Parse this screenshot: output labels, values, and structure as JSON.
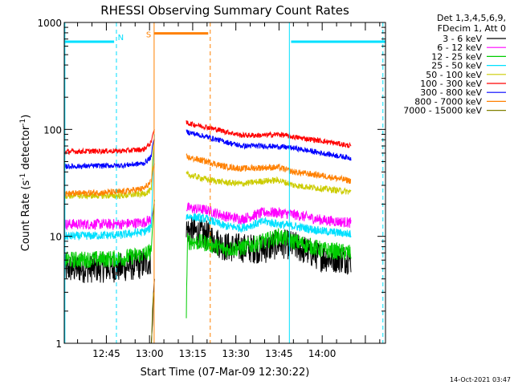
{
  "chart_data": {
    "type": "line",
    "title": "RHESSI Observing Summary Count Rates",
    "xlabel": "Start Time (07-Mar-09 12:30:22)",
    "ylabel_main": "Count Rate (s",
    "ylabel_sup1": "-1",
    "ylabel_mid": " detector",
    "ylabel_sup2": "-1",
    "ylabel_end": ")",
    "ylabel": "Count Rate (s^-1 detector^-1)",
    "yscale": "log",
    "ylim": [
      1,
      1000
    ],
    "xlim_min": [
      30.37,
      142.0
    ],
    "xticks": [
      {
        "v": 45,
        "label": "12:45"
      },
      {
        "v": 60,
        "label": "13:00"
      },
      {
        "v": 75,
        "label": "13:15"
      },
      {
        "v": 90,
        "label": "13:30"
      },
      {
        "v": 105,
        "label": "13:45"
      },
      {
        "v": 120,
        "label": "14:00"
      }
    ],
    "yticks": [
      {
        "v": 1,
        "label": "1"
      },
      {
        "v": 10,
        "label": "10"
      },
      {
        "v": 100,
        "label": "100"
      },
      {
        "v": 1000,
        "label": "1000"
      }
    ],
    "legend_header": [
      "Det 1,3,4,5,6,9,",
      "FDecim 1, Att 0"
    ],
    "legend_placement": "right",
    "footer_date": "14-Oct-2021 03:47",
    "gap_min": [
      61.8,
      72.5
    ],
    "flags": {
      "night_label": "N",
      "saa_label": "S",
      "night_color": "#00e0ff",
      "saa_color": "#ff8000",
      "night_level": 660,
      "saa_level": 790,
      "night_bars": [
        [
          30.37,
          47.7
        ],
        [
          109.2,
          142.0
        ]
      ],
      "night_edges": [
        30.6,
        48.5,
        108.6,
        141.1
      ],
      "saa_bar": [
        61.7,
        80.4
      ],
      "saa_edges": [
        61.6,
        81.1
      ],
      "night_label_at": 50.0,
      "saa_label_at": 59.7
    },
    "series": [
      {
        "name": "3 - 6 keV",
        "color": "#000000",
        "noise": 0.14,
        "pre": [
          [
            30.4,
            5.0
          ],
          [
            50,
            5.1
          ],
          [
            58,
            5.5
          ],
          [
            60.5,
            6.0
          ]
        ],
        "spike": [
          [
            60.6,
            1.0
          ],
          [
            61.0,
            1.5
          ],
          [
            61.4,
            3.0
          ],
          [
            61.7,
            4.0
          ]
        ],
        "post": [
          [
            72.8,
            11.5
          ],
          [
            80,
            10.2
          ],
          [
            86,
            8.0
          ],
          [
            92,
            7.8
          ],
          [
            100,
            7.6
          ],
          [
            105,
            8.6
          ],
          [
            110,
            8.2
          ],
          [
            120,
            6.4
          ],
          [
            130,
            6.1
          ]
        ]
      },
      {
        "name": "6 - 12 keV",
        "color": "#ff00ff",
        "noise": 0.05,
        "pre": [
          [
            30.4,
            13.0
          ],
          [
            50,
            13.0
          ],
          [
            58,
            13.5
          ],
          [
            60.5,
            14.5
          ]
        ],
        "spike": [
          [
            60.6,
            14.5
          ],
          [
            61.0,
            16.0
          ],
          [
            61.4,
            18.0
          ],
          [
            61.7,
            20.0
          ]
        ],
        "post": [
          [
            72.8,
            18.5
          ],
          [
            80,
            17.6
          ],
          [
            86,
            15.5
          ],
          [
            92,
            14.5
          ],
          [
            100,
            16.8
          ],
          [
            105,
            16.6
          ],
          [
            110,
            16.0
          ],
          [
            120,
            14.2
          ],
          [
            130,
            13.4
          ]
        ]
      },
      {
        "name": "12 - 25 keV",
        "color": "#00cc00",
        "noise": 0.08,
        "pre": [
          [
            30.4,
            6.0
          ],
          [
            50,
            6.2
          ],
          [
            58,
            6.8
          ],
          [
            60.5,
            7.2
          ]
        ],
        "spike": [
          [
            60.6,
            7.2
          ],
          [
            61.0,
            12.0
          ],
          [
            61.4,
            18.0
          ],
          [
            61.7,
            22.0
          ]
        ],
        "post": [
          [
            72.8,
            2.0
          ],
          [
            73.2,
            9.0
          ],
          [
            80,
            8.6
          ],
          [
            86,
            7.6
          ],
          [
            92,
            7.8
          ],
          [
            100,
            9.0
          ],
          [
            105,
            10.0
          ],
          [
            110,
            9.0
          ],
          [
            120,
            7.5
          ],
          [
            130,
            7.0
          ]
        ]
      },
      {
        "name": "25 - 50 keV",
        "color": "#00e0ff",
        "noise": 0.04,
        "pre": [
          [
            30.4,
            10.0
          ],
          [
            50,
            10.3
          ],
          [
            58,
            11.0
          ],
          [
            60.5,
            12.0
          ]
        ],
        "spike": [
          [
            60.6,
            12.0
          ],
          [
            61.0,
            25.0
          ],
          [
            61.4,
            60.0
          ],
          [
            61.7,
            90.0
          ]
        ],
        "post": [
          [
            72.8,
            15.5
          ],
          [
            80,
            14.5
          ],
          [
            86,
            12.5
          ],
          [
            92,
            12.0
          ],
          [
            100,
            13.8
          ],
          [
            105,
            13.0
          ],
          [
            110,
            12.5
          ],
          [
            120,
            11.2
          ],
          [
            130,
            10.5
          ]
        ]
      },
      {
        "name": "50 - 100 keV",
        "color": "#cccc00",
        "noise": 0.03,
        "pre": [
          [
            30.4,
            24.0
          ],
          [
            50,
            24.0
          ],
          [
            58,
            25.0
          ],
          [
            60.5,
            27.0
          ]
        ],
        "spike": [
          [
            60.6,
            27.0
          ],
          [
            61.0,
            50.0
          ],
          [
            61.4,
            70.0
          ],
          [
            61.7,
            80.0
          ]
        ],
        "post": [
          [
            72.8,
            38.0
          ],
          [
            80,
            34.0
          ],
          [
            86,
            32.0
          ],
          [
            92,
            31.0
          ],
          [
            100,
            33.0
          ],
          [
            105,
            33.5
          ],
          [
            110,
            30.0
          ],
          [
            120,
            28.0
          ],
          [
            130,
            26.0
          ]
        ]
      },
      {
        "name": "100 - 300 keV",
        "color": "#ff0000",
        "noise": 0.025,
        "pre": [
          [
            30.4,
            62.0
          ],
          [
            50,
            63.0
          ],
          [
            58,
            65.0
          ],
          [
            60.5,
            75.0
          ]
        ],
        "spike": [
          [
            60.6,
            75.0
          ],
          [
            61.0,
            88.0
          ],
          [
            61.4,
            95.0
          ],
          [
            61.7,
            100.0
          ]
        ],
        "post": [
          [
            72.8,
            115.0
          ],
          [
            80,
            105.0
          ],
          [
            86,
            96.0
          ],
          [
            92,
            88.0
          ],
          [
            100,
            88.0
          ],
          [
            105,
            90.0
          ],
          [
            110,
            85.0
          ],
          [
            120,
            78.0
          ],
          [
            130,
            70.0
          ]
        ]
      },
      {
        "name": "300 - 800 keV",
        "color": "#0000ff",
        "noise": 0.025,
        "pre": [
          [
            30.4,
            45.0
          ],
          [
            50,
            46.0
          ],
          [
            58,
            48.0
          ],
          [
            60.5,
            55.0
          ]
        ],
        "spike": [
          [
            60.6,
            55.0
          ],
          [
            61.0,
            70.0
          ],
          [
            61.4,
            78.0
          ],
          [
            61.7,
            82.0
          ]
        ],
        "post": [
          [
            72.8,
            95.0
          ],
          [
            80,
            85.0
          ],
          [
            86,
            77.0
          ],
          [
            92,
            70.0
          ],
          [
            100,
            70.0
          ],
          [
            105,
            69.0
          ],
          [
            110,
            67.0
          ],
          [
            120,
            60.0
          ],
          [
            130,
            54.0
          ]
        ]
      },
      {
        "name": "800 - 7000 keV",
        "color": "#ff8000",
        "noise": 0.03,
        "pre": [
          [
            30.4,
            25.0
          ],
          [
            50,
            26.0
          ],
          [
            58,
            28.0
          ],
          [
            60.5,
            32.0
          ]
        ],
        "spike": [
          [
            60.6,
            32.0
          ],
          [
            61.0,
            40.0
          ],
          [
            61.4,
            45.0
          ],
          [
            61.7,
            48.0
          ]
        ],
        "post": [
          [
            72.8,
            55.0
          ],
          [
            80,
            50.0
          ],
          [
            86,
            45.0
          ],
          [
            92,
            43.0
          ],
          [
            100,
            44.0
          ],
          [
            105,
            44.0
          ],
          [
            110,
            40.0
          ],
          [
            120,
            37.0
          ],
          [
            130,
            33.0
          ]
        ]
      },
      {
        "name": "7000 - 15000 keV",
        "color": "#808000",
        "noise": 0.0,
        "pre": [],
        "spike": [
          [
            60.7,
            1.0
          ],
          [
            61.0,
            2.0
          ],
          [
            61.4,
            3.0
          ]
        ],
        "post": []
      }
    ]
  }
}
